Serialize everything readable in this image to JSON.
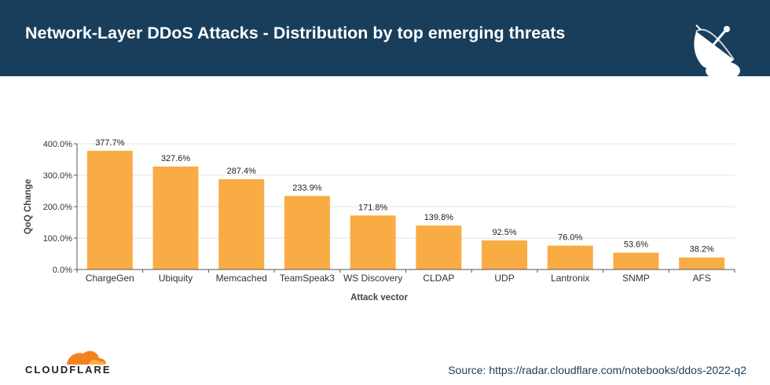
{
  "header": {
    "title": "Network-Layer DDoS Attacks - Distribution by top emerging threats"
  },
  "chart_data": {
    "type": "bar",
    "title": "Network-Layer DDoS Attacks - Distribution by top emerging threats",
    "categories": [
      "ChargeGen",
      "Ubiquity",
      "Memcached",
      "TeamSpeak3",
      "WS Discovery",
      "CLDAP",
      "UDP",
      "Lantronix",
      "SNMP",
      "AFS"
    ],
    "values": [
      377.7,
      327.6,
      287.4,
      233.9,
      171.8,
      139.8,
      92.5,
      76.0,
      53.6,
      38.2
    ],
    "value_labels": [
      "377.7%",
      "327.6%",
      "287.4%",
      "233.9%",
      "171.8%",
      "139.8%",
      "92.5%",
      "76.0%",
      "53.6%",
      "38.2%"
    ],
    "xlabel": "Attack vector",
    "ylabel": "QoQ Change",
    "ylim": [
      0,
      400
    ],
    "yticks": [
      0,
      100,
      200,
      300,
      400
    ],
    "ytick_labels": [
      "0.0%",
      "100.0%",
      "200.0%",
      "300.0%",
      "400.0%"
    ],
    "bar_color": "#f9ac44",
    "grid": true
  },
  "footer": {
    "brand": "CLOUDFLARE",
    "source": "Source: https://radar.cloudflare.com/notebooks/ddos-2022-q2"
  },
  "colors": {
    "header_bg": "#183e5c",
    "bar": "#f9ac44",
    "logo_orange": "#f48120",
    "logo_light": "#fbad41"
  }
}
